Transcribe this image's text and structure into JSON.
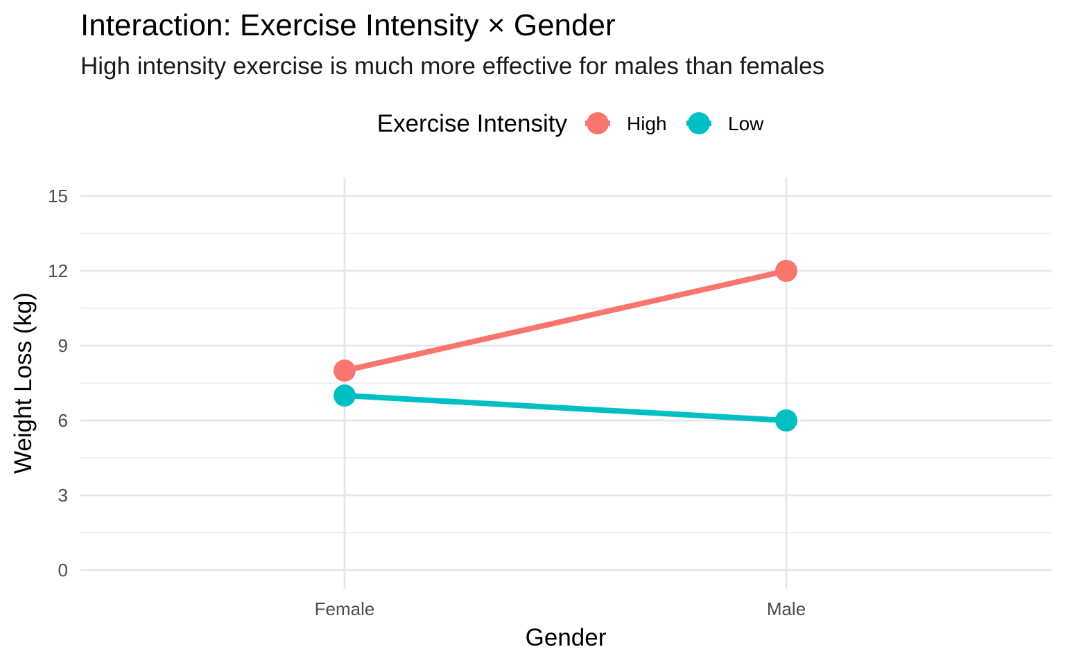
{
  "chart_data": {
    "type": "line",
    "title": "Interaction: Exercise Intensity × Gender",
    "subtitle": "High intensity exercise is much more effective for males than females",
    "xlabel": "Gender",
    "ylabel": "Weight Loss (kg)",
    "categories": [
      "Female",
      "Male"
    ],
    "ylim": [
      0,
      15
    ],
    "yticks": [
      "0",
      "3",
      "6",
      "9",
      "12",
      "15"
    ],
    "grid": true,
    "legend": {
      "title": "Exercise Intensity",
      "placement": "top"
    },
    "series": [
      {
        "name": "High",
        "color": "#F8766D",
        "values": [
          8,
          12
        ]
      },
      {
        "name": "Low",
        "color": "#00BFC4",
        "values": [
          7,
          6
        ]
      }
    ]
  }
}
